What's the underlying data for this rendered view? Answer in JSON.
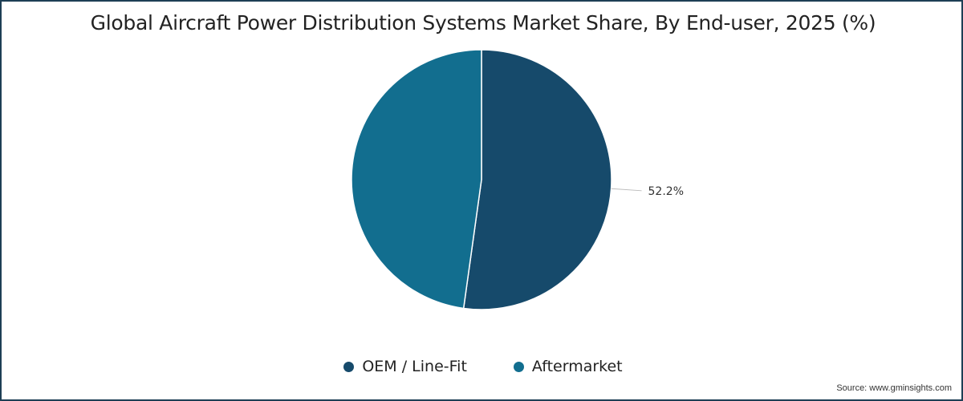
{
  "chart_data": {
    "type": "pie",
    "title": "Global Aircraft Power Distribution Systems Market Share, By End-user, 2025 (%)",
    "slices": [
      {
        "label": "OEM / Line-Fit",
        "value": 52.2,
        "color": "#164a6b",
        "data_label": "52.2%"
      },
      {
        "label": "Aftermarket",
        "value": 47.8,
        "color": "#126e8f"
      }
    ],
    "legend_placement": "bottom"
  },
  "source": "Source: www.gminsights.com"
}
